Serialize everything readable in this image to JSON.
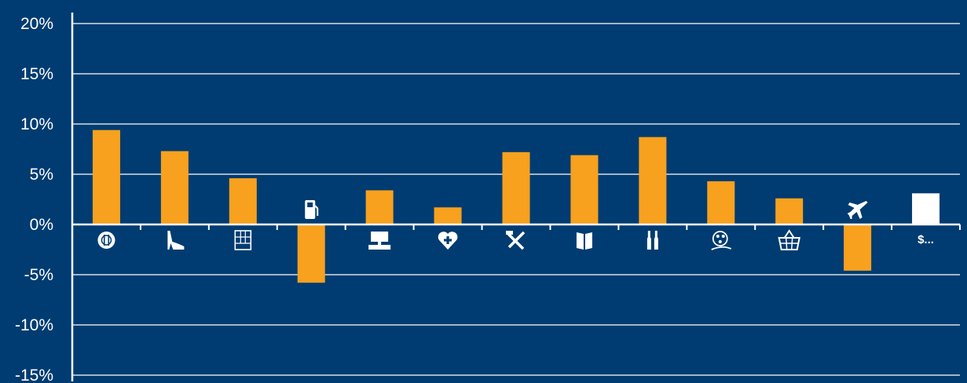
{
  "chart_data": {
    "type": "bar",
    "ylim": [
      -15,
      20
    ],
    "yticks": [
      20,
      15,
      10,
      5,
      0,
      -5,
      -10,
      -15
    ],
    "ytick_labels": [
      "20%",
      "15%",
      "10%",
      "5%",
      "0%",
      "-5%",
      "-10%",
      "-15%"
    ],
    "grid": true,
    "categories": [
      {
        "icon": "restaurant-plate-icon",
        "label": ""
      },
      {
        "icon": "high-heel-shoe-icon",
        "label": ""
      },
      {
        "icon": "furniture-cabinet-icon",
        "label": ""
      },
      {
        "icon": "fuel-pump-icon",
        "label": ""
      },
      {
        "icon": "electronics-computer-icon",
        "label": ""
      },
      {
        "icon": "health-heart-icon",
        "label": ""
      },
      {
        "icon": "hardware-tools-icon",
        "label": ""
      },
      {
        "icon": "books-icon",
        "label": ""
      },
      {
        "icon": "wine-bottles-icon",
        "label": ""
      },
      {
        "icon": "entertainment-film-icon",
        "label": ""
      },
      {
        "icon": "grocery-basket-icon",
        "label": ""
      },
      {
        "icon": "airplane-icon",
        "label": ""
      },
      {
        "icon": "",
        "label": "$..."
      }
    ],
    "values": [
      9.4,
      7.3,
      4.6,
      -5.8,
      3.4,
      1.7,
      7.2,
      6.9,
      8.7,
      4.3,
      2.6,
      -4.6,
      3.1
    ],
    "bar_colors": [
      "#f7a11e",
      "#f7a11e",
      "#f7a11e",
      "#f7a11e",
      "#f7a11e",
      "#f7a11e",
      "#f7a11e",
      "#f7a11e",
      "#f7a11e",
      "#f7a11e",
      "#f7a11e",
      "#f7a11e",
      "#ffffff"
    ]
  },
  "colors": {
    "background": "#003c71",
    "bar": "#f7a11e",
    "highlight_bar": "#ffffff",
    "grid": "#ffffff",
    "text": "#ffffff"
  }
}
